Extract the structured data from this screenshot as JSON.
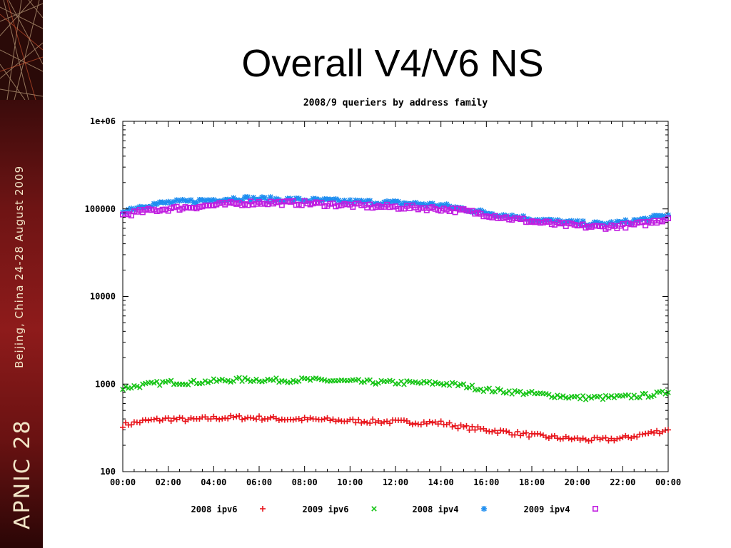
{
  "slide": {
    "title": "Overall V4/V6 NS",
    "sidebar_brand": "APNIC 28",
    "sidebar_event": "Beijing, China  24-28 August 2009"
  },
  "chart_data": {
    "type": "scatter",
    "title": "2008/9 queriers by address family",
    "xlabel": "",
    "ylabel": "",
    "y_scale": "log",
    "ylim": [
      100,
      1000000
    ],
    "xlim": [
      "00:00",
      "24:00"
    ],
    "y_ticks": [
      "100",
      "1000",
      "10000",
      "100000",
      "1e+06"
    ],
    "x_ticks": [
      "00:00",
      "02:00",
      "04:00",
      "06:00",
      "08:00",
      "10:00",
      "12:00",
      "14:00",
      "16:00",
      "18:00",
      "20:00",
      "22:00",
      "00:00"
    ],
    "legend_position": "bottom",
    "grid": false,
    "x_hours": [
      0,
      1,
      2,
      3,
      4,
      5,
      6,
      7,
      8,
      9,
      10,
      11,
      12,
      13,
      14,
      15,
      16,
      17,
      18,
      19,
      20,
      21,
      22,
      23,
      24
    ],
    "series": [
      {
        "name": "2008 ipv6",
        "marker": "plus",
        "color": "#e8141b",
        "values": [
          340,
          380,
          400,
          390,
          410,
          415,
          410,
          400,
          395,
          390,
          380,
          375,
          370,
          365,
          360,
          320,
          300,
          280,
          260,
          245,
          235,
          230,
          240,
          270,
          300
        ]
      },
      {
        "name": "2009 ipv6",
        "marker": "cross",
        "color": "#15c415",
        "values": [
          900,
          980,
          1050,
          1040,
          1080,
          1120,
          1120,
          1100,
          1120,
          1100,
          1070,
          1050,
          1040,
          1030,
          1020,
          960,
          860,
          820,
          780,
          740,
          700,
          700,
          710,
          740,
          800
        ]
      },
      {
        "name": "2008 ipv4",
        "marker": "star",
        "color": "#1e8ef0",
        "values": [
          95000,
          110000,
          118000,
          122000,
          127000,
          132000,
          130000,
          128000,
          126000,
          124000,
          121000,
          119000,
          117000,
          114000,
          110000,
          100000,
          90000,
          84000,
          77000,
          72000,
          69000,
          67000,
          70000,
          76000,
          85000
        ]
      },
      {
        "name": "2009 ipv4",
        "marker": "square",
        "color": "#c01ee0",
        "values": [
          85000,
          95000,
          100000,
          105000,
          110000,
          115000,
          118000,
          117000,
          116000,
          113000,
          110000,
          107000,
          105000,
          103000,
          100000,
          95000,
          86000,
          78000,
          72000,
          67000,
          64000,
          62000,
          64000,
          68000,
          78000
        ]
      }
    ]
  }
}
